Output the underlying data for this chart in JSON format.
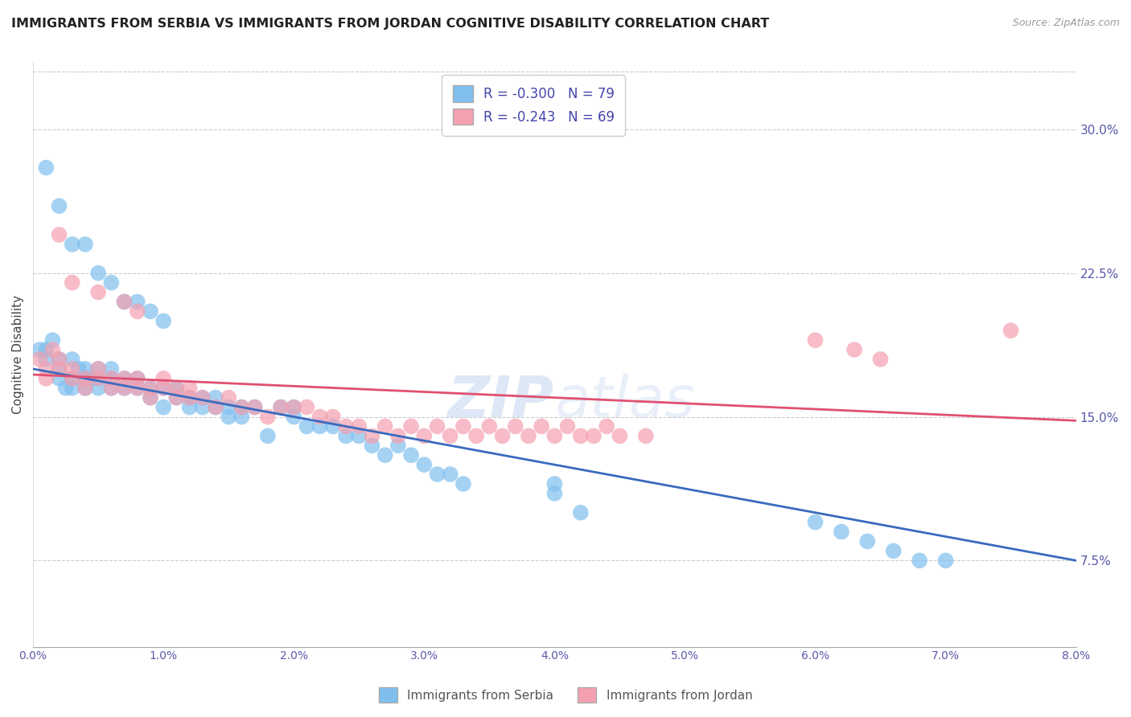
{
  "title": "IMMIGRANTS FROM SERBIA VS IMMIGRANTS FROM JORDAN COGNITIVE DISABILITY CORRELATION CHART",
  "source": "Source: ZipAtlas.com",
  "ylabel": "Cognitive Disability",
  "ytick_labels": [
    "7.5%",
    "15.0%",
    "22.5%",
    "30.0%"
  ],
  "ytick_values": [
    0.075,
    0.15,
    0.225,
    0.3
  ],
  "xlim": [
    0.0,
    0.08
  ],
  "ylim": [
    0.03,
    0.335
  ],
  "serbia_color": "#7fbfee",
  "jordan_color": "#f4a0b0",
  "serbia_line_color": "#3a6bbf",
  "jordan_line_color": "#e05070",
  "serbia_R": -0.3,
  "serbia_N": 79,
  "jordan_R": -0.243,
  "jordan_N": 69,
  "background_color": "#ffffff",
  "grid_color": "#cccccc",
  "serbia_scatter_x": [
    0.0005,
    0.001,
    0.001,
    0.0015,
    0.002,
    0.002,
    0.002,
    0.0025,
    0.003,
    0.003,
    0.003,
    0.0035,
    0.004,
    0.004,
    0.004,
    0.0045,
    0.005,
    0.005,
    0.005,
    0.006,
    0.006,
    0.006,
    0.007,
    0.007,
    0.008,
    0.008,
    0.009,
    0.009,
    0.01,
    0.01,
    0.011,
    0.011,
    0.012,
    0.012,
    0.013,
    0.013,
    0.014,
    0.014,
    0.015,
    0.015,
    0.016,
    0.016,
    0.017,
    0.018,
    0.019,
    0.02,
    0.02,
    0.021,
    0.022,
    0.023,
    0.024,
    0.025,
    0.026,
    0.027,
    0.028,
    0.029,
    0.03,
    0.031,
    0.032,
    0.033,
    0.001,
    0.002,
    0.003,
    0.004,
    0.005,
    0.006,
    0.007,
    0.008,
    0.009,
    0.01,
    0.04,
    0.04,
    0.042,
    0.06,
    0.062,
    0.064,
    0.066,
    0.068,
    0.07
  ],
  "serbia_scatter_y": [
    0.185,
    0.18,
    0.185,
    0.19,
    0.17,
    0.175,
    0.18,
    0.165,
    0.165,
    0.17,
    0.18,
    0.175,
    0.165,
    0.17,
    0.175,
    0.17,
    0.165,
    0.17,
    0.175,
    0.165,
    0.17,
    0.175,
    0.165,
    0.17,
    0.165,
    0.17,
    0.16,
    0.165,
    0.155,
    0.165,
    0.16,
    0.165,
    0.155,
    0.16,
    0.155,
    0.16,
    0.155,
    0.16,
    0.15,
    0.155,
    0.155,
    0.15,
    0.155,
    0.14,
    0.155,
    0.15,
    0.155,
    0.145,
    0.145,
    0.145,
    0.14,
    0.14,
    0.135,
    0.13,
    0.135,
    0.13,
    0.125,
    0.12,
    0.12,
    0.115,
    0.28,
    0.26,
    0.24,
    0.24,
    0.225,
    0.22,
    0.21,
    0.21,
    0.205,
    0.2,
    0.115,
    0.11,
    0.1,
    0.095,
    0.09,
    0.085,
    0.08,
    0.075,
    0.075
  ],
  "jordan_scatter_x": [
    0.0005,
    0.001,
    0.001,
    0.0015,
    0.002,
    0.002,
    0.003,
    0.003,
    0.004,
    0.004,
    0.005,
    0.005,
    0.006,
    0.006,
    0.007,
    0.007,
    0.008,
    0.008,
    0.009,
    0.009,
    0.01,
    0.01,
    0.011,
    0.011,
    0.012,
    0.012,
    0.013,
    0.014,
    0.015,
    0.016,
    0.017,
    0.018,
    0.019,
    0.02,
    0.021,
    0.022,
    0.023,
    0.024,
    0.025,
    0.026,
    0.027,
    0.028,
    0.029,
    0.03,
    0.031,
    0.032,
    0.033,
    0.034,
    0.035,
    0.036,
    0.037,
    0.038,
    0.039,
    0.04,
    0.041,
    0.042,
    0.043,
    0.044,
    0.045,
    0.047,
    0.002,
    0.003,
    0.005,
    0.007,
    0.008,
    0.06,
    0.063,
    0.065,
    0.075
  ],
  "jordan_scatter_y": [
    0.18,
    0.17,
    0.175,
    0.185,
    0.175,
    0.18,
    0.17,
    0.175,
    0.165,
    0.17,
    0.17,
    0.175,
    0.165,
    0.17,
    0.165,
    0.17,
    0.165,
    0.17,
    0.16,
    0.165,
    0.165,
    0.17,
    0.16,
    0.165,
    0.16,
    0.165,
    0.16,
    0.155,
    0.16,
    0.155,
    0.155,
    0.15,
    0.155,
    0.155,
    0.155,
    0.15,
    0.15,
    0.145,
    0.145,
    0.14,
    0.145,
    0.14,
    0.145,
    0.14,
    0.145,
    0.14,
    0.145,
    0.14,
    0.145,
    0.14,
    0.145,
    0.14,
    0.145,
    0.14,
    0.145,
    0.14,
    0.14,
    0.145,
    0.14,
    0.14,
    0.245,
    0.22,
    0.215,
    0.21,
    0.205,
    0.19,
    0.185,
    0.18,
    0.195
  ],
  "serbia_line_x": [
    0.0,
    0.08
  ],
  "serbia_line_y": [
    0.175,
    0.075
  ],
  "jordan_line_x": [
    0.0,
    0.08
  ],
  "jordan_line_y": [
    0.172,
    0.148
  ]
}
